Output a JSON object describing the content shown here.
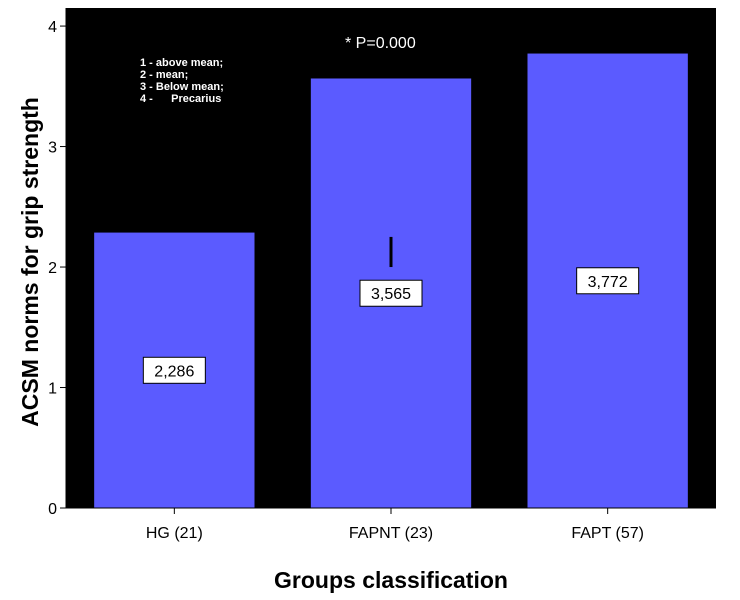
{
  "chart_data": {
    "type": "bar",
    "categories": [
      "HG (21)",
      "FAPNT (23)",
      "FAPT (57)"
    ],
    "values": [
      2.286,
      3.565,
      3.772
    ],
    "data_labels": [
      "2,286",
      "3,565",
      "3,772"
    ],
    "xlabel": "Groups classification",
    "ylabel": "ACSM norms for grip strength",
    "ylim": [
      0,
      4.15
    ],
    "yticks": [
      0,
      1,
      2,
      3,
      4
    ],
    "ytick_labels": [
      "0",
      "1",
      "2",
      "3",
      "4"
    ],
    "grid": false,
    "plot_background": "#000000",
    "bar_color": "#5b5bff",
    "annotation": "* P=0.000",
    "legend_notes": [
      "1 - above mean;",
      "2 - mean;",
      "3 - Below mean;",
      "4 -      Precarius"
    ],
    "marker": {
      "category": "FAPNT (23)",
      "from": 2.0,
      "to": 2.25
    }
  }
}
